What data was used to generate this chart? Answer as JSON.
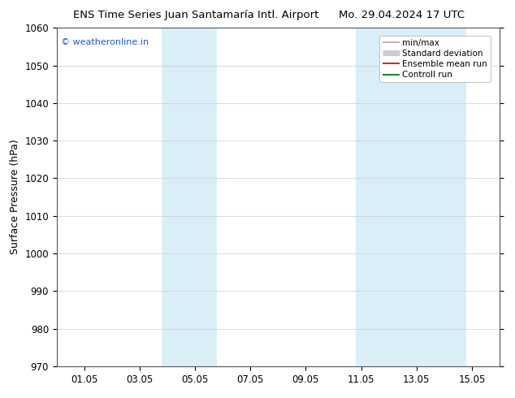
{
  "title_left": "ENS Time Series Juan Santamaría Intl. Airport",
  "title_right": "Mo. 29.04.2024 17 UTC",
  "ylabel": "Surface Pressure (hPa)",
  "ylim": [
    970,
    1060
  ],
  "yticks": [
    970,
    980,
    990,
    1000,
    1010,
    1020,
    1030,
    1040,
    1050,
    1060
  ],
  "xtick_labels": [
    "01.05",
    "03.05",
    "05.05",
    "07.05",
    "09.05",
    "11.05",
    "13.05",
    "15.05"
  ],
  "xtick_positions": [
    1,
    3,
    5,
    7,
    9,
    11,
    13,
    15
  ],
  "xlim": [
    0,
    16
  ],
  "shaded_bands": [
    {
      "xmin": 3.8,
      "xmax": 5.8,
      "color": "#daeef8"
    },
    {
      "xmin": 10.8,
      "xmax": 12.8,
      "color": "#daeef8"
    },
    {
      "xmin": 12.8,
      "xmax": 14.8,
      "color": "#daeef8"
    }
  ],
  "watermark_text": "© weatheronline.in",
  "watermark_color": "#2255cc",
  "legend_items": [
    {
      "label": "min/max",
      "color": "#aaaaaa",
      "lw": 1.2
    },
    {
      "label": "Standard deviation",
      "color": "#cccccc",
      "lw": 5
    },
    {
      "label": "Ensemble mean run",
      "color": "#cc0000",
      "lw": 1.2
    },
    {
      "label": "Controll run",
      "color": "#006600",
      "lw": 1.2
    }
  ],
  "bg_color": "#ffffff",
  "title_fontsize": 9.5,
  "tick_fontsize": 8.5,
  "ylabel_fontsize": 9
}
